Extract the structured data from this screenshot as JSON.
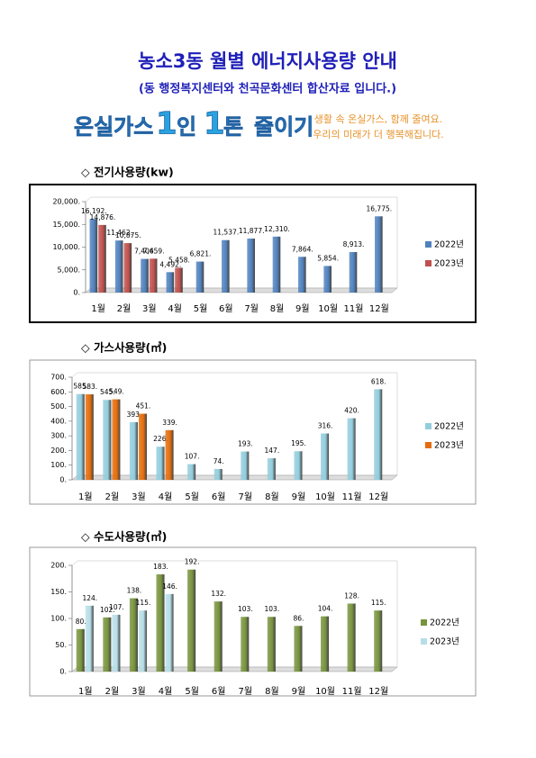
{
  "header": {
    "title": "농소3동 월별 에너지사용량 안내",
    "subtitle": "(동 행정복지센터와 천곡문화센터 합산자료 입니다.)"
  },
  "banner": {
    "slogan": [
      "온실가스",
      "1",
      "인",
      "1",
      "톤",
      "줄이기"
    ],
    "lines": [
      "생활 속 온실가스, 함께 줄여요.",
      "우리의 미래가 더 행복해집니다."
    ]
  },
  "chart_data": [
    {
      "type": "bar",
      "title": "◇ 전기사용량(kw)",
      "categories": [
        "1월",
        "2월",
        "3월",
        "4월",
        "5월",
        "6월",
        "7월",
        "8월",
        "9월",
        "10월",
        "11월",
        "12월"
      ],
      "series": [
        {
          "name": "2022년",
          "color": "#4f81bd",
          "values": [
            16192,
            11462,
            7406,
            4492,
            6821,
            11537,
            11877,
            12310,
            7864,
            5854,
            8913,
            16775
          ],
          "value_labels": [
            "16,192.",
            "11,462.",
            "7,406.",
            "4,492.",
            "6,821.",
            "11,537.",
            "11,877.",
            "12,310.",
            "7,864.",
            "5,854.",
            "8,913.",
            "16,775."
          ]
        },
        {
          "name": "2023년",
          "color": "#c0504d",
          "values": [
            14876,
            10875,
            7459,
            5458,
            null,
            null,
            null,
            null,
            null,
            null,
            null,
            null
          ],
          "value_labels": [
            "14,876.",
            "10,875.",
            "7,459.",
            "5,458.",
            null,
            null,
            null,
            null,
            null,
            null,
            null,
            null
          ]
        }
      ],
      "ylim": [
        0,
        20000
      ],
      "yticks": [
        {
          "value": 0,
          "label": "0."
        },
        {
          "value": 5000,
          "label": "5,000."
        },
        {
          "value": 10000,
          "label": "10,000."
        },
        {
          "value": 15000,
          "label": "15,000."
        },
        {
          "value": 20000,
          "label": "20,000."
        }
      ],
      "legend": "right"
    },
    {
      "type": "bar",
      "title": "◇ 가스사용량(㎥)",
      "categories": [
        "1월",
        "2월",
        "3월",
        "4월",
        "5월",
        "6월",
        "7월",
        "8월",
        "9월",
        "10월",
        "11월",
        "12월"
      ],
      "series": [
        {
          "name": "2022년",
          "color": "#93cddd",
          "values": [
            585,
            545,
            393,
            226,
            107,
            74,
            193,
            147,
            195,
            316,
            420,
            618
          ],
          "value_labels": [
            "585.",
            "545.",
            "393.",
            "226.",
            "107.",
            "74.",
            "193.",
            "147.",
            "195.",
            "316.",
            "420.",
            "618."
          ]
        },
        {
          "name": "2023년",
          "color": "#e46c0a",
          "values": [
            583,
            549,
            451,
            339,
            null,
            null,
            null,
            null,
            null,
            null,
            null,
            null
          ],
          "value_labels": [
            "583.",
            "549.",
            "451.",
            "339.",
            null,
            null,
            null,
            null,
            null,
            null,
            null,
            null
          ]
        }
      ],
      "ylim": [
        0,
        700
      ],
      "yticks": [
        {
          "value": 0,
          "label": "0."
        },
        {
          "value": 100,
          "label": "100."
        },
        {
          "value": 200,
          "label": "200."
        },
        {
          "value": 300,
          "label": "300."
        },
        {
          "value": 400,
          "label": "400."
        },
        {
          "value": 500,
          "label": "500."
        },
        {
          "value": 600,
          "label": "600."
        },
        {
          "value": 700,
          "label": "700."
        }
      ],
      "legend": "right"
    },
    {
      "type": "bar",
      "title": "◇ 수도사용량(㎥)",
      "categories": [
        "1월",
        "2월",
        "3월",
        "4월",
        "5월",
        "6월",
        "7월",
        "8월",
        "9월",
        "10월",
        "11월",
        "12월"
      ],
      "series": [
        {
          "name": "2022년",
          "color": "#77933c",
          "values": [
            80,
            102,
            138,
            183,
            192,
            132,
            103,
            103,
            86,
            104,
            128,
            115
          ],
          "value_labels": [
            "80.",
            "102.",
            "138.",
            "183.",
            "192.",
            "132.",
            "103.",
            "103.",
            "86.",
            "104.",
            "128.",
            "115."
          ]
        },
        {
          "name": "2023년",
          "color": "#b7dee8",
          "values": [
            124,
            107,
            115,
            146,
            null,
            null,
            null,
            null,
            null,
            null,
            null,
            null
          ],
          "value_labels": [
            "124.",
            "107.",
            "115.",
            "146.",
            null,
            null,
            null,
            null,
            null,
            null,
            null,
            null
          ]
        }
      ],
      "ylim": [
        0,
        200
      ],
      "yticks": [
        {
          "value": 0,
          "label": "0."
        },
        {
          "value": 50,
          "label": "50."
        },
        {
          "value": 100,
          "label": "100."
        },
        {
          "value": 150,
          "label": "150."
        },
        {
          "value": 200,
          "label": "200."
        }
      ],
      "legend": "right"
    }
  ]
}
